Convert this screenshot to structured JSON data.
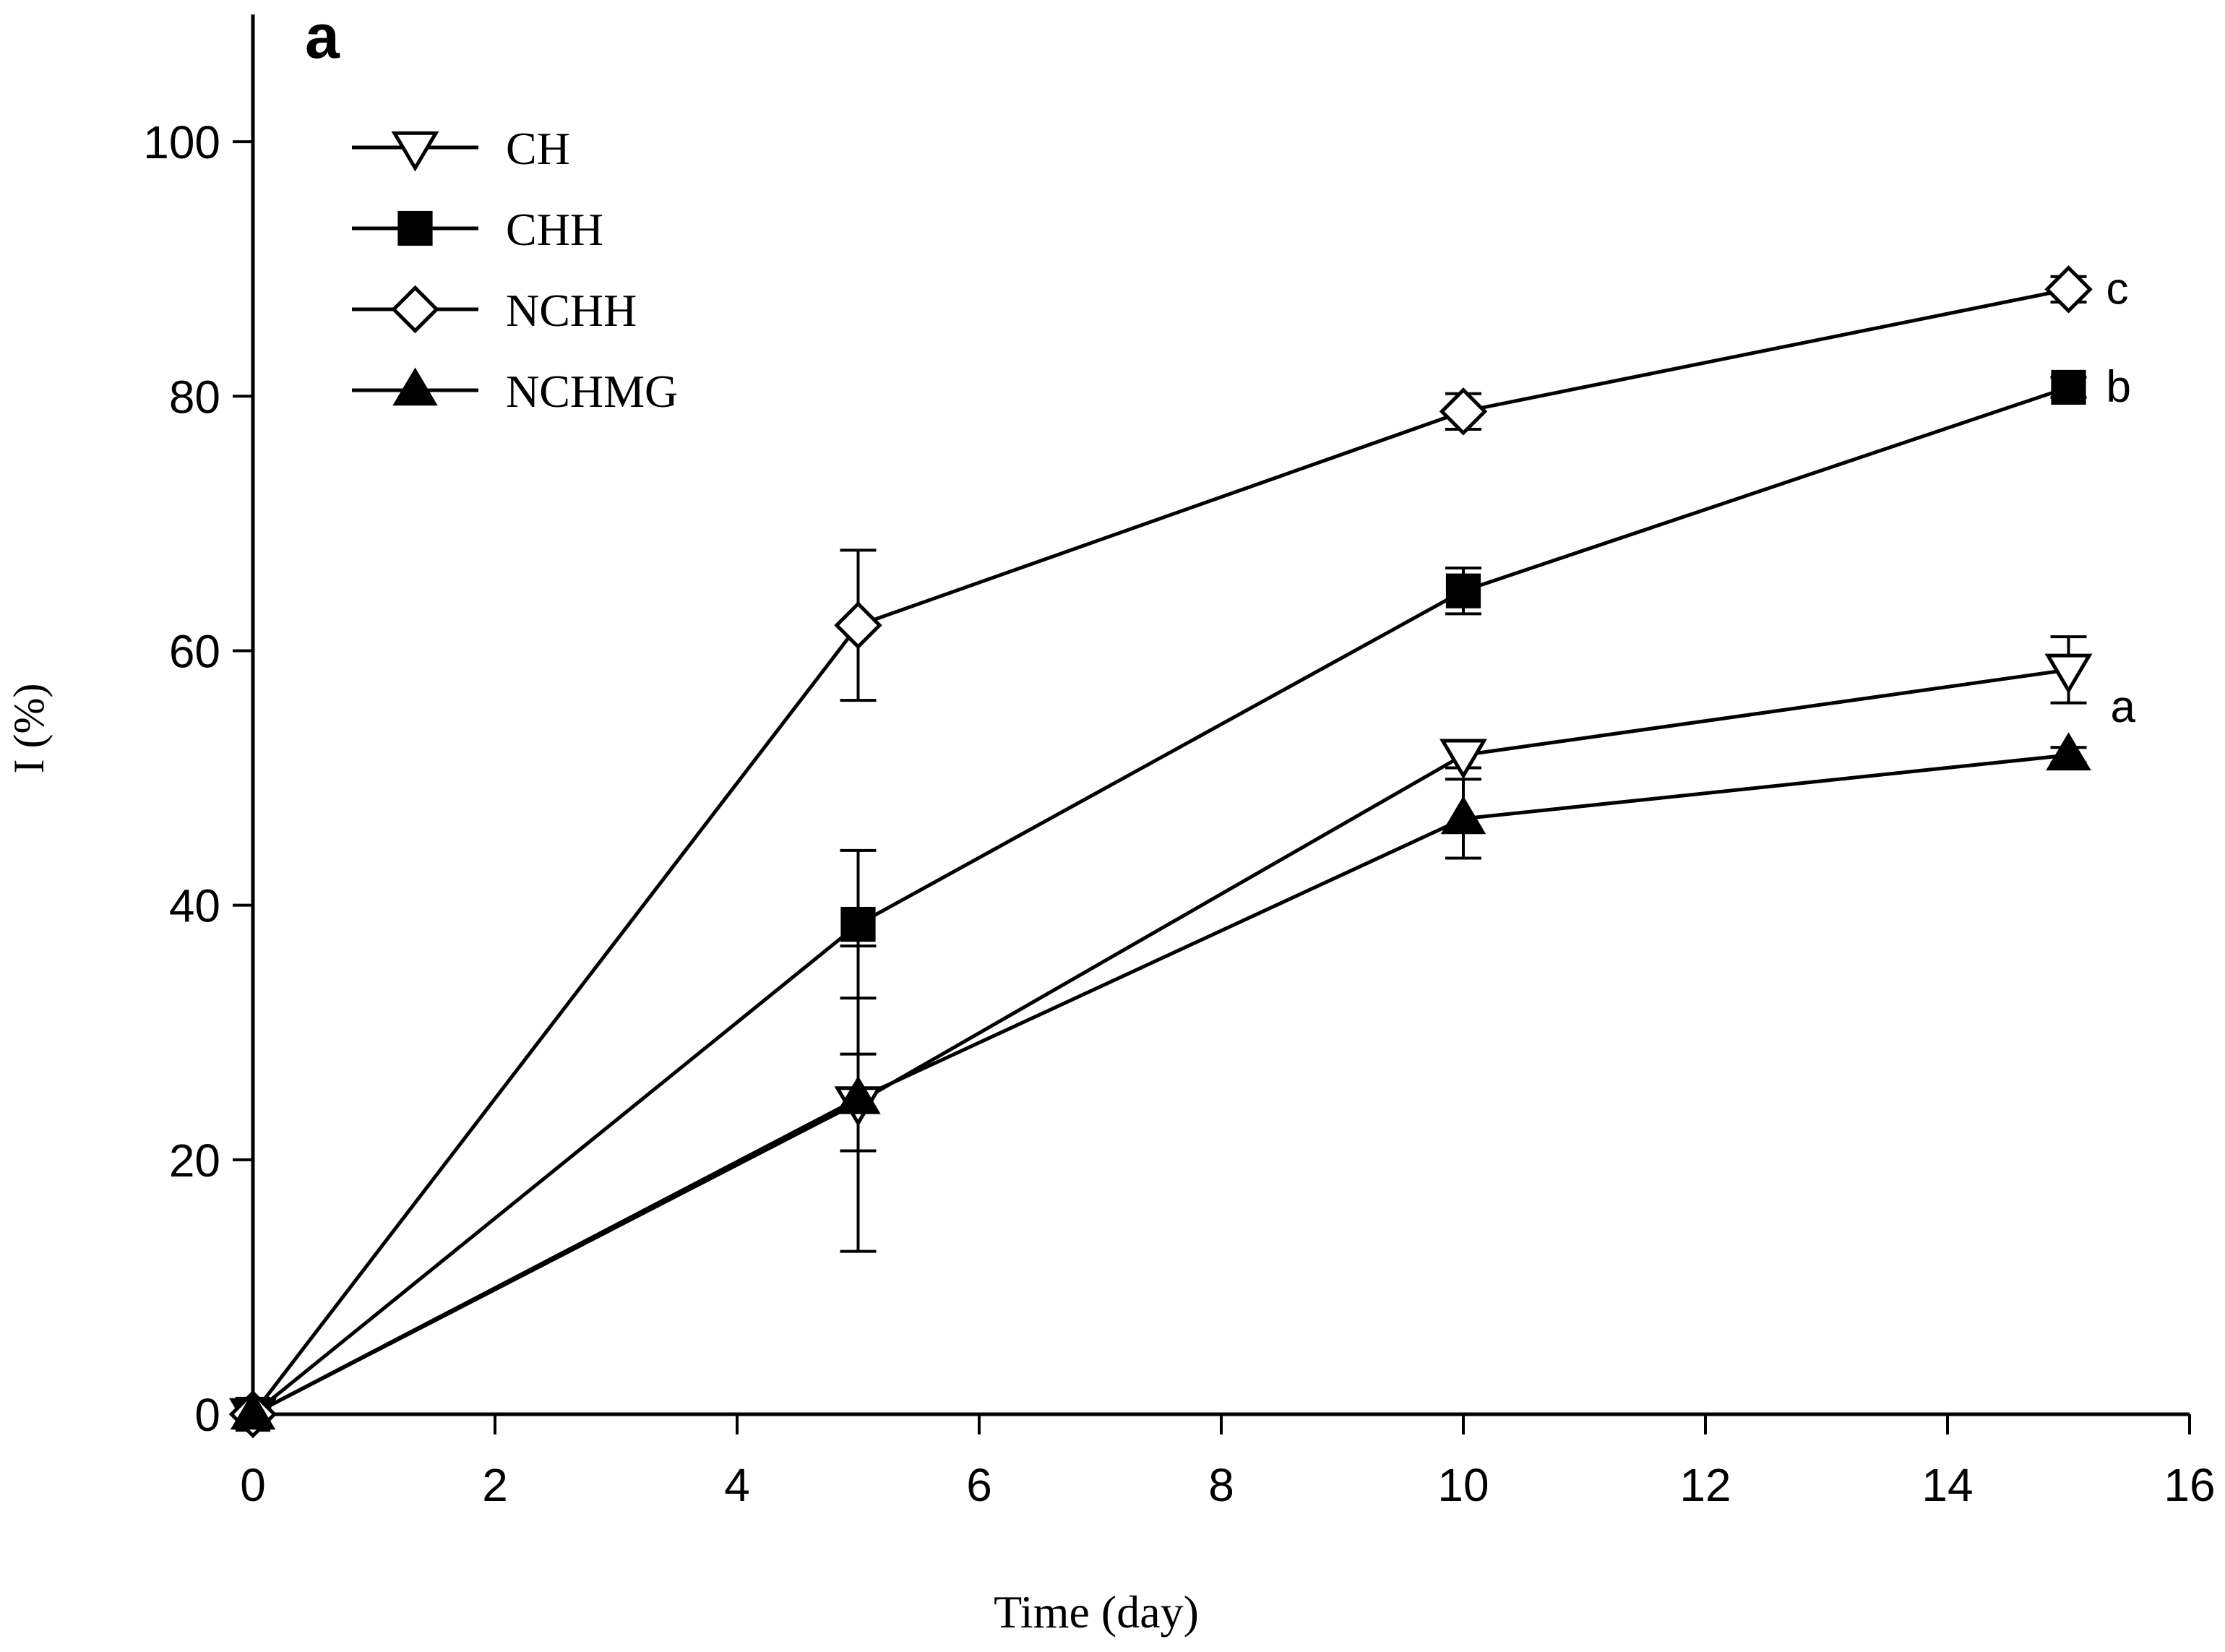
{
  "chart_data": {
    "type": "line",
    "panel_label": "a",
    "xlabel": "Time (day)",
    "ylabel": "I (%)",
    "xlim": [
      0,
      16
    ],
    "ylim": [
      0,
      110
    ],
    "xticks": [
      0,
      2,
      4,
      6,
      8,
      10,
      12,
      14,
      16
    ],
    "yticks": [
      0,
      20,
      40,
      60,
      80,
      100
    ],
    "grid": false,
    "legend_position": "top-left",
    "x": [
      0,
      5,
      10,
      15
    ],
    "series": [
      {
        "name": "CH",
        "marker": "triangle-down-open",
        "values": [
          0,
          24.5,
          51.8,
          58.5
        ],
        "errors": [
          0,
          3.8,
          1.0,
          2.6
        ],
        "letter": "a"
      },
      {
        "name": "CHH",
        "marker": "square-filled",
        "values": [
          0,
          38.5,
          64.7,
          80.7
        ],
        "errors": [
          0,
          5.8,
          1.8,
          0.8
        ],
        "letter": "b"
      },
      {
        "name": "NCHH",
        "marker": "diamond-open",
        "values": [
          0,
          62.0,
          78.8,
          88.4
        ],
        "errors": [
          0,
          5.9,
          1.4,
          1.0
        ],
        "letter": "c"
      },
      {
        "name": "NCHMG",
        "marker": "triangle-up-filled",
        "values": [
          0,
          24.8,
          46.8,
          51.8
        ],
        "errors": [
          0,
          12.0,
          3.1,
          0.6
        ],
        "letter": ""
      }
    ]
  }
}
